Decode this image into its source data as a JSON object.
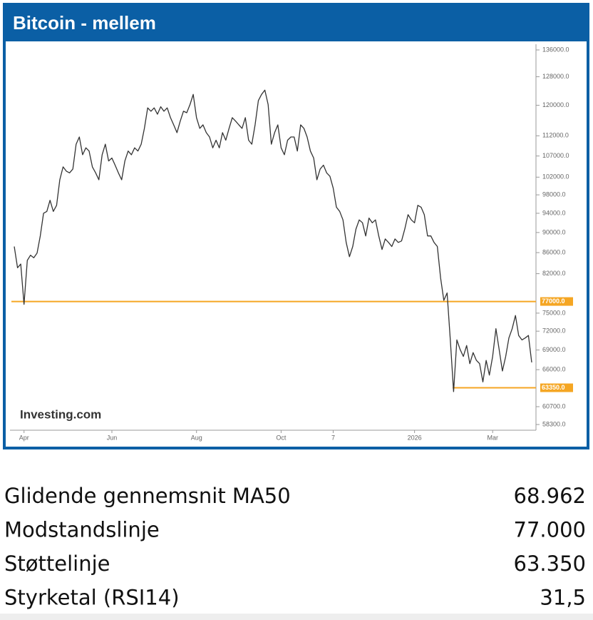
{
  "chart_data": {
    "type": "line",
    "title": "Bitcoin - mellem",
    "source": "Investing.com",
    "log": true,
    "color": "#333333",
    "values": [
      87200,
      83100,
      83800,
      76500,
      84500,
      85500,
      85000,
      85900,
      89300,
      94000,
      94400,
      96800,
      94400,
      95700,
      101400,
      104400,
      103400,
      103000,
      103900,
      109900,
      111700,
      107300,
      109000,
      108200,
      104400,
      103000,
      101400,
      107300,
      109900,
      105800,
      106500,
      104800,
      103000,
      101400,
      105800,
      108200,
      107300,
      109000,
      108200,
      109900,
      113900,
      119300,
      118400,
      119300,
      117600,
      119600,
      118400,
      119300,
      116700,
      114800,
      112800,
      115800,
      118400,
      118000,
      120200,
      123000,
      116700,
      113900,
      114800,
      112800,
      111700,
      109000,
      110900,
      109000,
      112800,
      110900,
      113900,
      116700,
      115800,
      114800,
      113900,
      116700,
      110900,
      109900,
      114800,
      121300,
      123000,
      124200,
      120200,
      109900,
      112800,
      114800,
      109000,
      107300,
      110900,
      111700,
      111700,
      108200,
      114800,
      113900,
      111700,
      108200,
      106500,
      101400,
      103900,
      104800,
      103000,
      102200,
      99500,
      95300,
      94400,
      92600,
      88000,
      85200,
      87200,
      90700,
      92600,
      92000,
      89300,
      93000,
      92000,
      92600,
      89300,
      86600,
      88700,
      88000,
      87200,
      88700,
      88000,
      88300,
      90700,
      93700,
      92600,
      92000,
      95700,
      95300,
      93700,
      89300,
      89300,
      88000,
      87200,
      81200,
      77200,
      78500,
      70600,
      62800,
      70600,
      69100,
      68000,
      69700,
      66900,
      68600,
      67400,
      66900,
      64200,
      67400,
      65200,
      68000,
      72400,
      69100,
      65800,
      68000,
      70900,
      72400,
      74600,
      71300,
      70600,
      70900,
      71300,
      67100
    ],
    "xlim": [
      0,
      159
    ],
    "xticks": [
      {
        "value": 3,
        "label": "Apr"
      },
      {
        "value": 30,
        "label": "Jun"
      },
      {
        "value": 56,
        "label": "Aug"
      },
      {
        "value": 82,
        "label": "Oct"
      },
      {
        "value": 98,
        "label": "7"
      },
      {
        "value": 123,
        "label": "2026"
      },
      {
        "value": 147,
        "label": "Mar"
      }
    ],
    "ylim": [
      58300,
      136000
    ],
    "yticks": [
      {
        "value": 136000,
        "label": "136000.0"
      },
      {
        "value": 128000,
        "label": "128000.0"
      },
      {
        "value": 120000,
        "label": "120000.0"
      },
      {
        "value": 112000,
        "label": "112000.0"
      },
      {
        "value": 107000,
        "label": "107000.0"
      },
      {
        "value": 102000,
        "label": "102000.0"
      },
      {
        "value": 98000,
        "label": "98000.0"
      },
      {
        "value": 94000,
        "label": "94000.0"
      },
      {
        "value": 90000,
        "label": "90000.0"
      },
      {
        "value": 86000,
        "label": "86000.0"
      },
      {
        "value": 82000,
        "label": "82000.0"
      },
      {
        "value": 75000,
        "label": "75000.0"
      },
      {
        "value": 72000,
        "label": "72000.0"
      },
      {
        "value": 69000,
        "label": "69000.0"
      },
      {
        "value": 66000,
        "label": "66000.0"
      },
      {
        "value": 60700,
        "label": "60700.0"
      },
      {
        "value": 58300,
        "label": "58300.0"
      }
    ],
    "hlines": [
      {
        "value": 77000,
        "label": "77000.0",
        "color": "#f5a623"
      },
      {
        "value": 63350,
        "label": "63350.0",
        "color": "#f5a623"
      }
    ]
  },
  "table": {
    "rows": [
      [
        "Glidende gennemsnit MA50",
        "68.962"
      ],
      [
        "Modstandslinje",
        "77.000"
      ],
      [
        "Støttelinje",
        "63.350"
      ],
      [
        "Styrketal (RSI14)",
        "31,5"
      ]
    ]
  }
}
